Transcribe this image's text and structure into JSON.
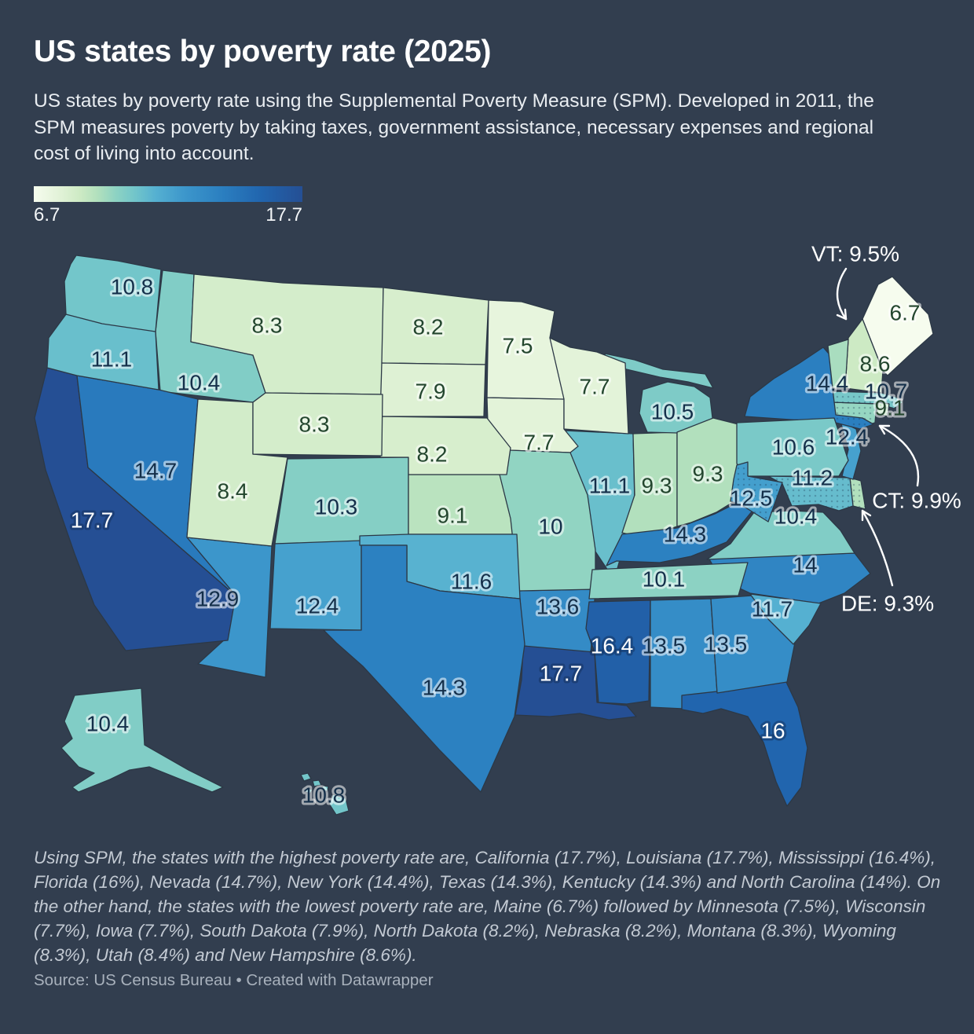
{
  "title": "US states by poverty rate (2025)",
  "subtitle": "US states by poverty rate using the Supplemental Poverty Measure (SPM). Developed in 2011, the SPM measures poverty by taking taxes, government assistance, necessary expenses and regional cost of living into account.",
  "legend": {
    "min_label": "6.7",
    "max_label": "17.7",
    "min": 6.7,
    "max": 17.7
  },
  "colors": {
    "background": "#323e4f",
    "scale": [
      {
        "v": 6.7,
        "c": "#f6fcee"
      },
      {
        "v": 7.7,
        "c": "#e3f3d9"
      },
      {
        "v": 8.6,
        "c": "#cdeac4"
      },
      {
        "v": 9.3,
        "c": "#b2e0bd"
      },
      {
        "v": 10.1,
        "c": "#8cd2c3"
      },
      {
        "v": 10.8,
        "c": "#73c6ca"
      },
      {
        "v": 11.7,
        "c": "#55b0d1"
      },
      {
        "v": 12.9,
        "c": "#3c96cb"
      },
      {
        "v": 14.4,
        "c": "#2b7fc0"
      },
      {
        "v": 16.0,
        "c": "#2165ae"
      },
      {
        "v": 17.7,
        "c": "#254f94"
      }
    ],
    "label_dark_green": "#23462e",
    "label_dark_navy": "#142f4a",
    "label_white": "#ffffff"
  },
  "annotations": [
    {
      "state": "VT",
      "text": "VT: 9.5%"
    },
    {
      "state": "CT",
      "text": "CT: 9.9%"
    },
    {
      "state": "DE",
      "text": "DE: 9.3%"
    }
  ],
  "chart_data": {
    "type": "choropleth-map",
    "title": "US states by poverty rate (2025)",
    "unit": "%",
    "measure": "Supplemental Poverty Measure (SPM)",
    "range": [
      6.7,
      17.7
    ],
    "states": [
      {
        "id": "AL",
        "name": "Alabama",
        "value": 13.5,
        "label": "13.5"
      },
      {
        "id": "AK",
        "name": "Alaska",
        "value": 10.4,
        "label": "10.4"
      },
      {
        "id": "AZ",
        "name": "Arizona",
        "value": 12.9,
        "label": "12.9"
      },
      {
        "id": "AR",
        "name": "Arkansas",
        "value": 13.6,
        "label": "13.6"
      },
      {
        "id": "CA",
        "name": "California",
        "value": 17.7,
        "label": "17.7"
      },
      {
        "id": "CO",
        "name": "Colorado",
        "value": 10.3,
        "label": "10.3"
      },
      {
        "id": "CT",
        "name": "Connecticut",
        "value": 9.9,
        "label": ""
      },
      {
        "id": "DE",
        "name": "Delaware",
        "value": 9.3,
        "label": ""
      },
      {
        "id": "FL",
        "name": "Florida",
        "value": 16,
        "label": "16"
      },
      {
        "id": "GA",
        "name": "Georgia",
        "value": 13.5,
        "label": "13.5"
      },
      {
        "id": "HI",
        "name": "Hawaii",
        "value": 10.8,
        "label": "10.8"
      },
      {
        "id": "ID",
        "name": "Idaho",
        "value": 10.4,
        "label": "10.4"
      },
      {
        "id": "IL",
        "name": "Illinois",
        "value": 11.1,
        "label": "11.1"
      },
      {
        "id": "IN",
        "name": "Indiana",
        "value": 9.3,
        "label": "9.3"
      },
      {
        "id": "IA",
        "name": "Iowa",
        "value": 7.7,
        "label": "7.7"
      },
      {
        "id": "KS",
        "name": "Kansas",
        "value": 9.1,
        "label": "9.1"
      },
      {
        "id": "KY",
        "name": "Kentucky",
        "value": 14.3,
        "label": "14.3"
      },
      {
        "id": "LA",
        "name": "Louisiana",
        "value": 17.7,
        "label": "17.7"
      },
      {
        "id": "ME",
        "name": "Maine",
        "value": 6.7,
        "label": "6.7"
      },
      {
        "id": "MD",
        "name": "Maryland",
        "value": 11.2,
        "label": "11.2"
      },
      {
        "id": "MA",
        "name": "Massachusetts",
        "value": 10.7,
        "label": "10.7"
      },
      {
        "id": "MI",
        "name": "Michigan",
        "value": 10.5,
        "label": "10.5"
      },
      {
        "id": "MN",
        "name": "Minnesota",
        "value": 7.5,
        "label": "7.5"
      },
      {
        "id": "MS",
        "name": "Mississippi",
        "value": 16.4,
        "label": "16.4"
      },
      {
        "id": "MO",
        "name": "Missouri",
        "value": 10,
        "label": "10"
      },
      {
        "id": "MT",
        "name": "Montana",
        "value": 8.3,
        "label": "8.3"
      },
      {
        "id": "NE",
        "name": "Nebraska",
        "value": 8.2,
        "label": "8.2"
      },
      {
        "id": "NV",
        "name": "Nevada",
        "value": 14.7,
        "label": "14.7"
      },
      {
        "id": "NH",
        "name": "New Hampshire",
        "value": 8.6,
        "label": "8.6"
      },
      {
        "id": "NJ",
        "name": "New Jersey",
        "value": 12.4,
        "label": "12.4"
      },
      {
        "id": "NM",
        "name": "New Mexico",
        "value": 12.4,
        "label": "12.4"
      },
      {
        "id": "NY",
        "name": "New York",
        "value": 14.4,
        "label": "14.4"
      },
      {
        "id": "NC",
        "name": "North Carolina",
        "value": 14,
        "label": "14"
      },
      {
        "id": "ND",
        "name": "North Dakota",
        "value": 8.2,
        "label": "8.2"
      },
      {
        "id": "OH",
        "name": "Ohio",
        "value": 9.3,
        "label": "9.3"
      },
      {
        "id": "OK",
        "name": "Oklahoma",
        "value": 11.6,
        "label": "11.6"
      },
      {
        "id": "OR",
        "name": "Oregon",
        "value": 11.1,
        "label": "11.1"
      },
      {
        "id": "PA",
        "name": "Pennsylvania",
        "value": 10.6,
        "label": "10.6"
      },
      {
        "id": "RI",
        "name": "Rhode Island",
        "value": 9.1,
        "label": "9.1"
      },
      {
        "id": "SC",
        "name": "South Carolina",
        "value": 11.7,
        "label": "11.7"
      },
      {
        "id": "SD",
        "name": "South Dakota",
        "value": 7.9,
        "label": "7.9"
      },
      {
        "id": "TN",
        "name": "Tennessee",
        "value": 10.1,
        "label": "10.1"
      },
      {
        "id": "TX",
        "name": "Texas",
        "value": 14.3,
        "label": "14.3"
      },
      {
        "id": "UT",
        "name": "Utah",
        "value": 8.4,
        "label": "8.4"
      },
      {
        "id": "VT",
        "name": "Vermont",
        "value": 9.5,
        "label": ""
      },
      {
        "id": "VA",
        "name": "Virginia",
        "value": 10.4,
        "label": "10.4"
      },
      {
        "id": "WA",
        "name": "Washington",
        "value": 10.8,
        "label": "10.8"
      },
      {
        "id": "WV",
        "name": "West Virginia",
        "value": 12.5,
        "label": "12.5"
      },
      {
        "id": "WI",
        "name": "Wisconsin",
        "value": 7.7,
        "label": "7.7"
      },
      {
        "id": "WY",
        "name": "Wyoming",
        "value": 8.3,
        "label": "8.3"
      }
    ]
  },
  "description": "Using SPM, the states with the highest poverty rate are, California (17.7%), Louisiana (17.7%), Mississippi (16.4%), Florida (16%), Nevada (14.7%), New York (14.4%), Texas (14.3%), Kentucky (14.3%) and North Carolina (14%). On the other hand, the states with the lowest poverty rate are, Maine (6.7%) followed by Minnesota (7.5%), Wisconsin (7.7%), Iowa (7.7%), South Dakota (7.9%), North Dakota (8.2%), Nebraska (8.2%), Montana (8.3%), Wyoming (8.3%), Utah (8.4%) and New Hampshire (8.6%).",
  "source": "Source: US Census Bureau • Created with Datawrapper"
}
